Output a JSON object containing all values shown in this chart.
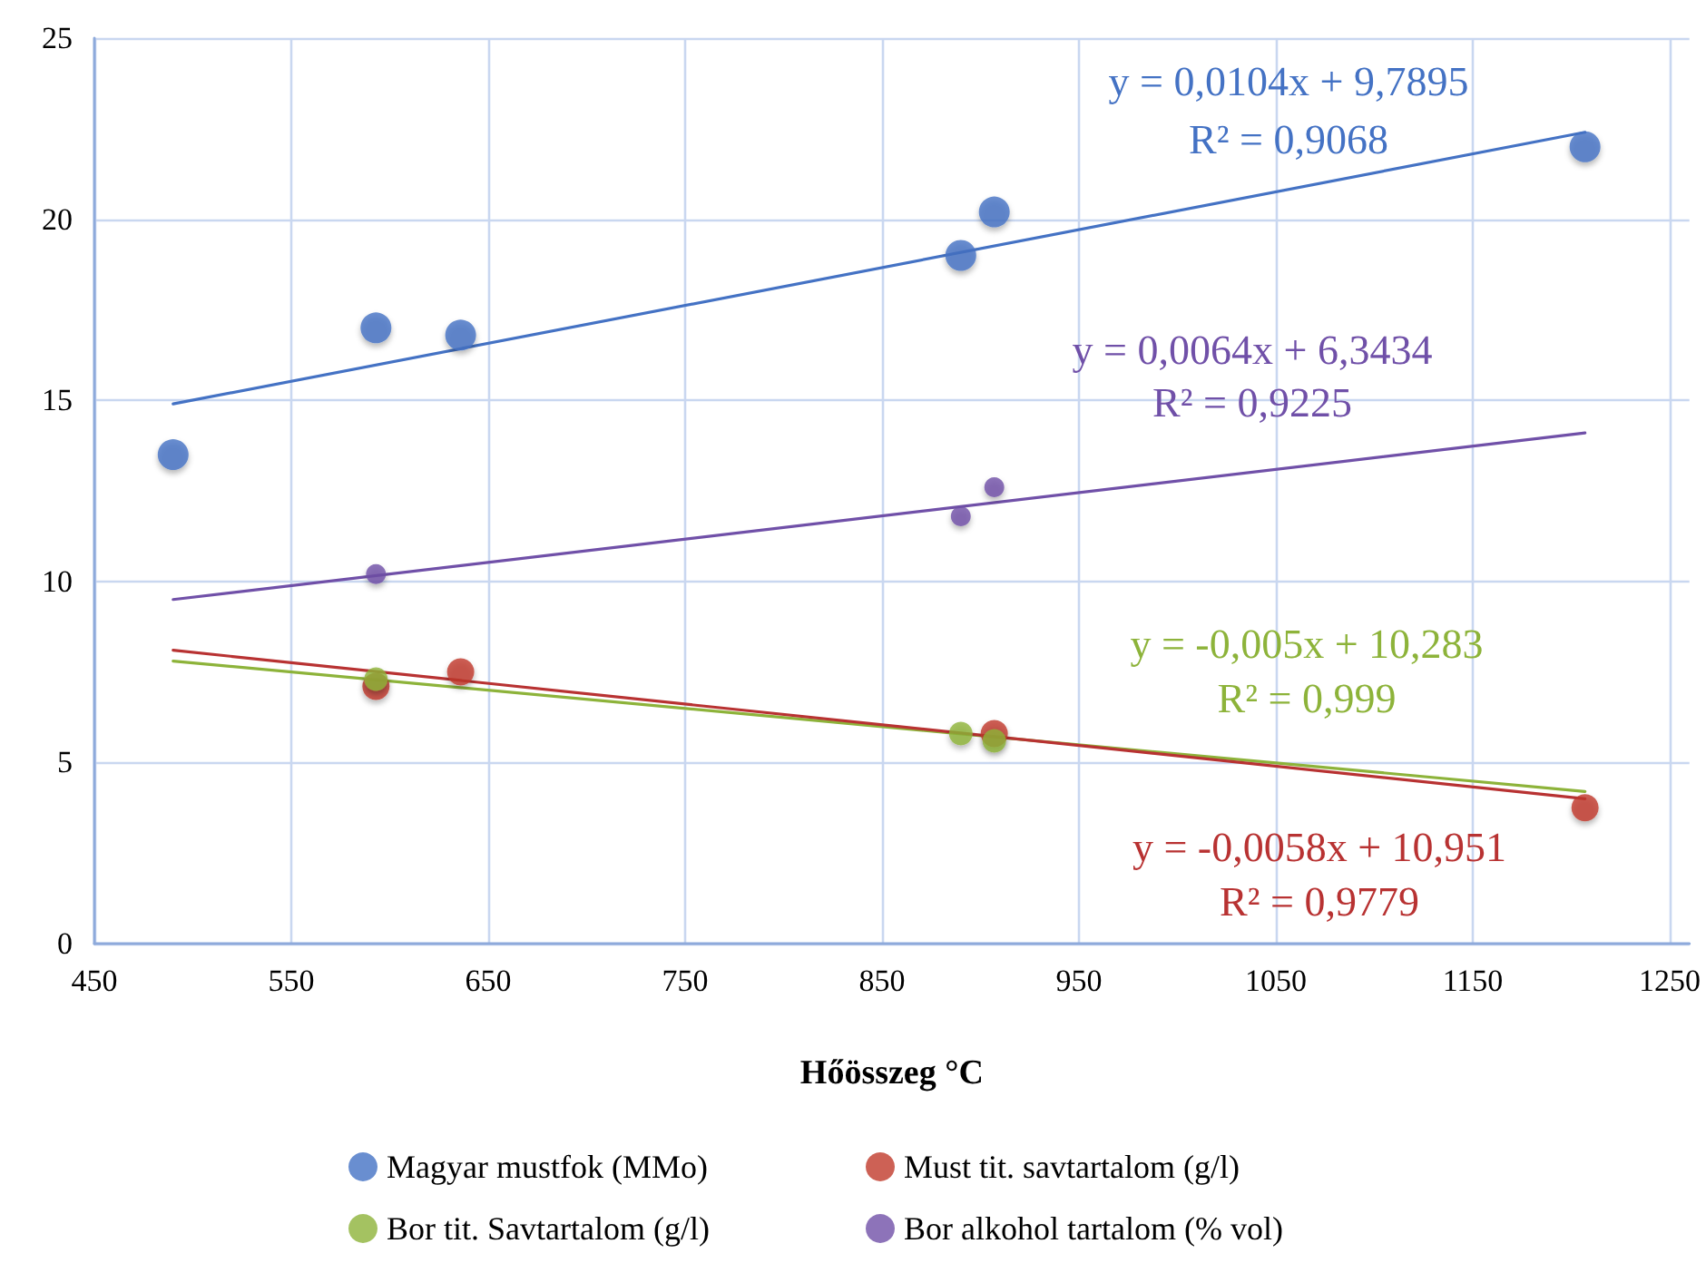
{
  "chart_data": {
    "type": "scatter",
    "xlabel": "Hőösszeg °C",
    "xlim": [
      450,
      1260
    ],
    "xticks": [
      450,
      550,
      650,
      750,
      850,
      950,
      1050,
      1150,
      1250
    ],
    "ylim": [
      0,
      25
    ],
    "yticks": [
      0,
      5,
      10,
      15,
      20,
      25
    ],
    "grid": true,
    "legend": "bottom",
    "marker": "circle",
    "series": [
      {
        "name": "Magyar mustfok (MMo)",
        "color": "#4472c4",
        "x": [
          490,
          593,
          636,
          890,
          907,
          1207
        ],
        "values": [
          13.5,
          17,
          16.8,
          19,
          20.2,
          22
        ]
      },
      {
        "name": "Must tit. savtartalom (g/l)",
        "color": "#c0392b",
        "x": [
          593,
          636,
          907,
          1207
        ],
        "values": [
          7.1,
          7.5,
          5.8,
          3.75
        ]
      },
      {
        "name": "Bor tit. Savtartalom (g/l)",
        "color": "#8db33a",
        "x": [
          593,
          890,
          907
        ],
        "values": [
          7.3,
          5.8,
          5.6
        ]
      },
      {
        "name": "Bor alkohol tartalom (% vol)",
        "color": "#7050a8",
        "x": [
          593,
          890,
          907
        ],
        "values": [
          10.2,
          11.8,
          12.6
        ]
      },
      {
        "type": "line",
        "marker": "none",
        "color": "#4472c4",
        "x": [
          490,
          1207
        ],
        "values": [
          14.9,
          22.4
        ]
      },
      {
        "type": "line",
        "marker": "none",
        "color": "#7050a8",
        "x": [
          490,
          1207
        ],
        "values": [
          9.5,
          14.1
        ]
      },
      {
        "type": "line",
        "marker": "none",
        "color": "#8db33a",
        "x": [
          490,
          1207
        ],
        "values": [
          7.8,
          4.2
        ]
      },
      {
        "type": "line",
        "marker": "none",
        "color": "#b83232",
        "x": [
          490,
          1207
        ],
        "values": [
          8.1,
          4.0
        ]
      }
    ],
    "annotations": [
      "y = 0,0104x + 9,7895",
      "R² = 0,9068",
      "y = 0,0064x + 6,3434",
      "R² = 0,9225",
      "y = -0,005x + 10,283",
      "R² = 0,999",
      "y = -0,0058x + 10,951",
      "R² = 0,9779"
    ]
  }
}
